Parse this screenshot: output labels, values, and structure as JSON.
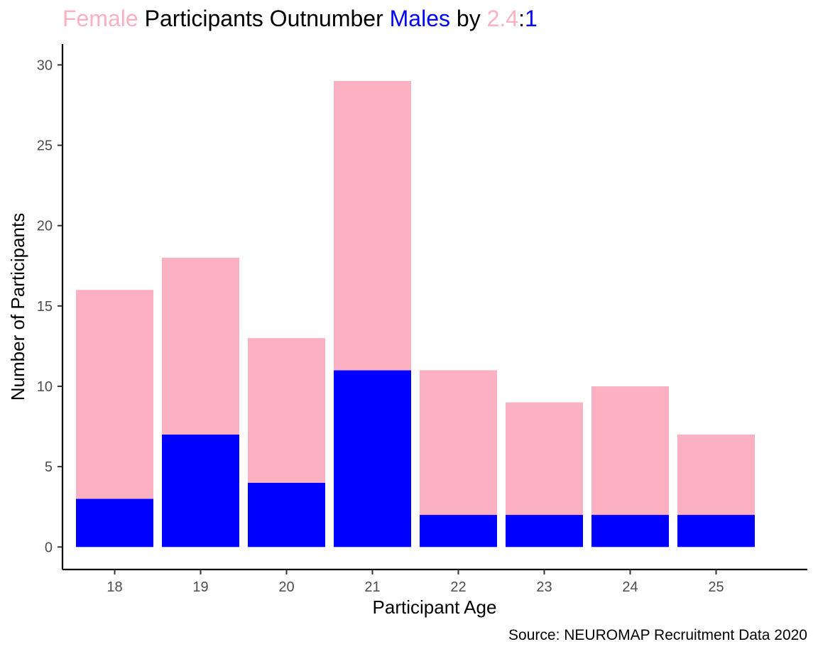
{
  "chart_data": {
    "type": "bar",
    "stacked": true,
    "title_parts": [
      {
        "text": "Female",
        "color": "#FBB1C1"
      },
      {
        "text": " Participants Outnumber ",
        "color": "#000000"
      },
      {
        "text": "Males",
        "color": "#0000FF"
      },
      {
        "text": " by ",
        "color": "#000000"
      },
      {
        "text": "2.4",
        "color": "#FBB1C1"
      },
      {
        "text": ":",
        "color": "#000000"
      },
      {
        "text": "1",
        "color": "#0000FF"
      }
    ],
    "xlabel": "Participant Age",
    "ylabel": "Number of Participants",
    "caption": "Source: NEUROMAP Recruitment Data 2020",
    "categories": [
      "18",
      "19",
      "20",
      "21",
      "22",
      "23",
      "24",
      "25"
    ],
    "series": [
      {
        "key": "male",
        "color": "#0000FF",
        "values": [
          3,
          7,
          4,
          11,
          2,
          2,
          2,
          2
        ]
      },
      {
        "key": "female",
        "color": "#FBB1C1",
        "values": [
          13,
          11,
          9,
          18,
          9,
          7,
          8,
          5
        ]
      }
    ],
    "ylim": [
      -1.4,
      31.3
    ],
    "yticks": [
      0,
      5,
      10,
      15,
      20,
      25,
      30
    ],
    "grid": false,
    "legend": "none"
  }
}
